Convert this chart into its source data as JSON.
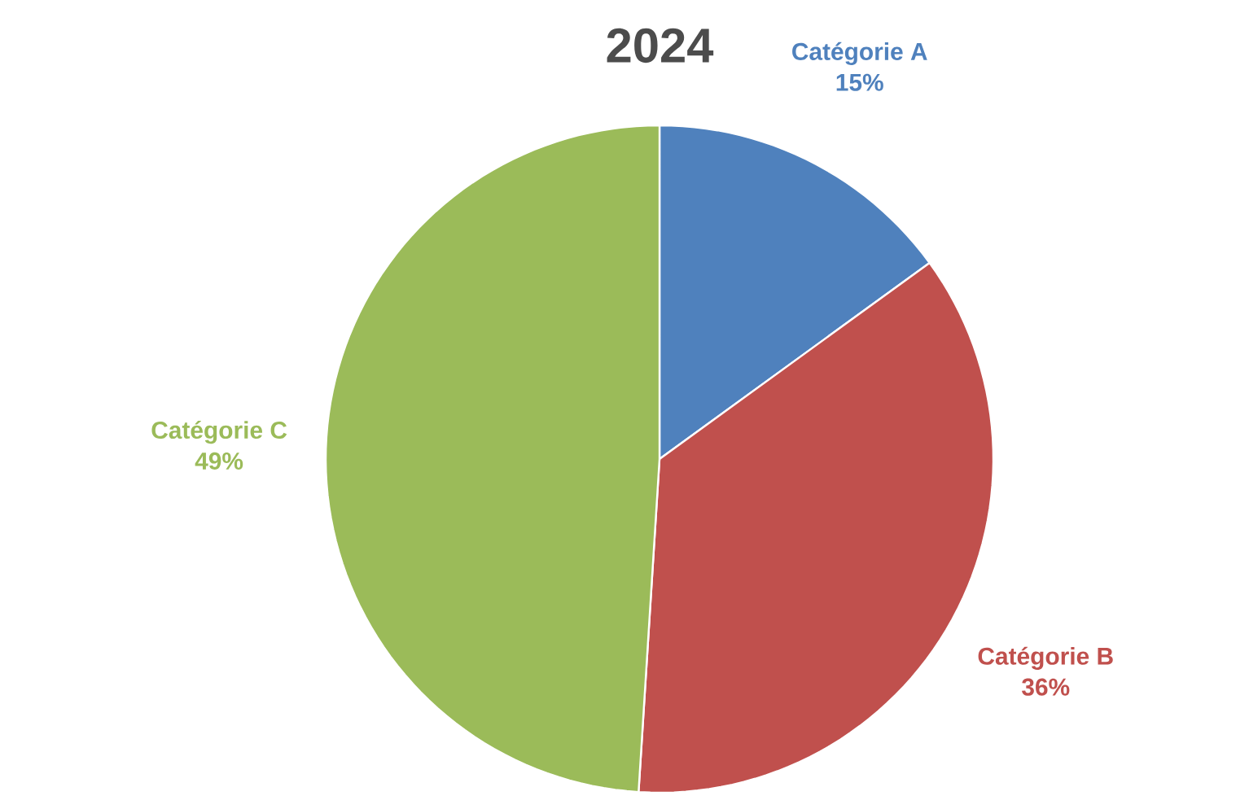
{
  "chart_data": {
    "type": "pie",
    "title": "2024",
    "categories": [
      "Catégorie A",
      "Catégorie B",
      "Catégorie C"
    ],
    "values": [
      15,
      36,
      49
    ],
    "value_labels": [
      "15%",
      "36%",
      "49%"
    ],
    "colors": [
      "#4f81bd",
      "#c0504d",
      "#9bbb59"
    ]
  }
}
